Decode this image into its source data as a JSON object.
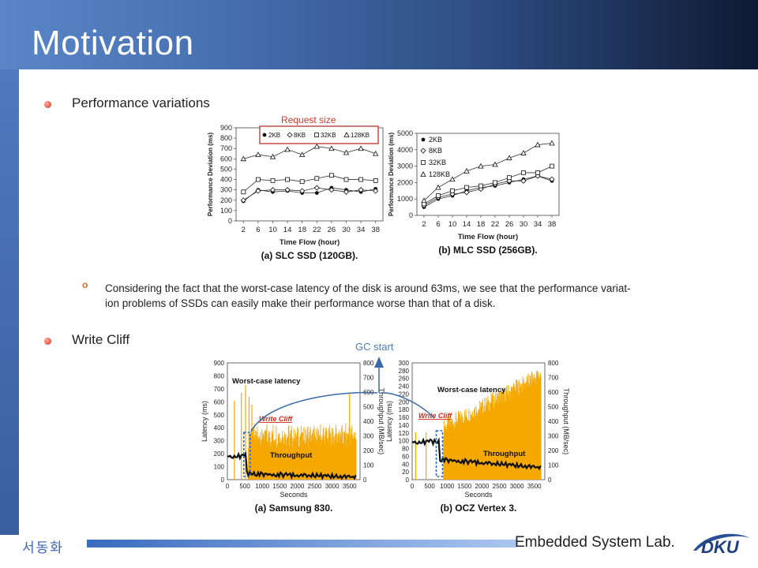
{
  "slide": {
    "title": "Motivation",
    "bullets": [
      {
        "text": "Performance variations"
      },
      {
        "text": "Write Cliff"
      }
    ],
    "subpoint": {
      "marker": "o",
      "line1": "Considering the fact that the worst-case latency of the disk is around 63ms, we see that the performance variat-",
      "line2": "ion problems of SSDs can easily make their performance worse than that of a disk."
    },
    "annotations": {
      "request_size": "Request size",
      "gc_start": "GC start"
    }
  },
  "footer": {
    "korean": "서동화",
    "lab": "Embedded System Lab.",
    "logo_text": "DKU"
  },
  "colors": {
    "accent_red": "#d42c1a",
    "title_bg": "#2f4f86",
    "latency": "#f5a800",
    "link_blue": "#4a7db5"
  },
  "chart_data": [
    {
      "type": "line",
      "caption": "(a) SLC SSD (120GB).",
      "xlabel": "Time Flow (hour)",
      "ylabel": "Performance Deviation (ms)",
      "x": [
        2,
        6,
        10,
        14,
        18,
        22,
        26,
        30,
        34,
        38
      ],
      "ylim": [
        0,
        900
      ],
      "yticks": [
        0,
        100,
        200,
        300,
        400,
        500,
        600,
        700,
        800,
        900
      ],
      "legend": [
        "2KB",
        "8KB",
        "32KB",
        "128KB"
      ],
      "series": [
        {
          "name": "2KB",
          "values": [
            190,
            300,
            280,
            290,
            270,
            270,
            320,
            300,
            280,
            310
          ]
        },
        {
          "name": "8KB",
          "values": [
            200,
            290,
            300,
            300,
            290,
            320,
            300,
            280,
            300,
            290
          ]
        },
        {
          "name": "32KB",
          "values": [
            280,
            400,
            390,
            400,
            380,
            410,
            440,
            400,
            400,
            390
          ]
        },
        {
          "name": "128KB",
          "values": [
            600,
            640,
            620,
            690,
            640,
            720,
            700,
            660,
            700,
            650
          ]
        }
      ]
    },
    {
      "type": "line",
      "caption": "(b) MLC SSD (256GB).",
      "xlabel": "Time Flow (hour)",
      "ylabel": "Performance Deviation (ms)",
      "x": [
        2,
        6,
        10,
        14,
        18,
        22,
        26,
        30,
        34,
        38
      ],
      "ylim": [
        0,
        5000
      ],
      "yticks": [
        0,
        1000,
        2000,
        3000,
        4000,
        5000
      ],
      "legend": [
        "2KB",
        "8KB",
        "32KB",
        "128KB"
      ],
      "series": [
        {
          "name": "2KB",
          "values": [
            500,
            1000,
            1200,
            1500,
            1700,
            1800,
            2000,
            2200,
            2400,
            2100
          ]
        },
        {
          "name": "8KB",
          "values": [
            600,
            1100,
            1300,
            1400,
            1600,
            1900,
            2100,
            2100,
            2400,
            2200
          ]
        },
        {
          "name": "32KB",
          "values": [
            700,
            1200,
            1500,
            1700,
            1800,
            2000,
            2300,
            2600,
            2600,
            3000
          ]
        },
        {
          "name": "128KB",
          "values": [
            900,
            1700,
            2200,
            2700,
            3000,
            3100,
            3500,
            3800,
            4300,
            4400
          ]
        }
      ]
    },
    {
      "type": "line",
      "caption": "(a) Samsung 830.",
      "xlabel": "Seconds",
      "ylabel": "Latency (ms)",
      "y2label": "Throughput (MB/sec)",
      "xticks": [
        0,
        500,
        1000,
        1500,
        2000,
        2500,
        3000,
        3500
      ],
      "yticks": [
        0,
        100,
        200,
        300,
        400,
        500,
        600,
        700,
        800,
        900
      ],
      "y2ticks": [
        0,
        100,
        200,
        300,
        400,
        500,
        600,
        700,
        800
      ],
      "labels": {
        "worst": "Worst-case latency",
        "cliff": "Write Cliff",
        "tput": "Throughput"
      }
    },
    {
      "type": "line",
      "caption": "(b) OCZ Vertex 3.",
      "xlabel": "Seconds",
      "ylabel": "Latency (ms)",
      "y2label": "Throughput (MB/sec)",
      "xticks": [
        0,
        500,
        1000,
        1500,
        2000,
        2500,
        3000,
        3500
      ],
      "yticks": [
        0,
        20,
        40,
        60,
        80,
        100,
        120,
        140,
        160,
        180,
        200,
        220,
        240,
        260,
        280,
        300
      ],
      "y2ticks": [
        0,
        100,
        200,
        300,
        400,
        500,
        600,
        700,
        800
      ],
      "labels": {
        "worst": "Worst-case latency",
        "cliff": "Write Cliff",
        "tput": "Throughput"
      }
    }
  ]
}
